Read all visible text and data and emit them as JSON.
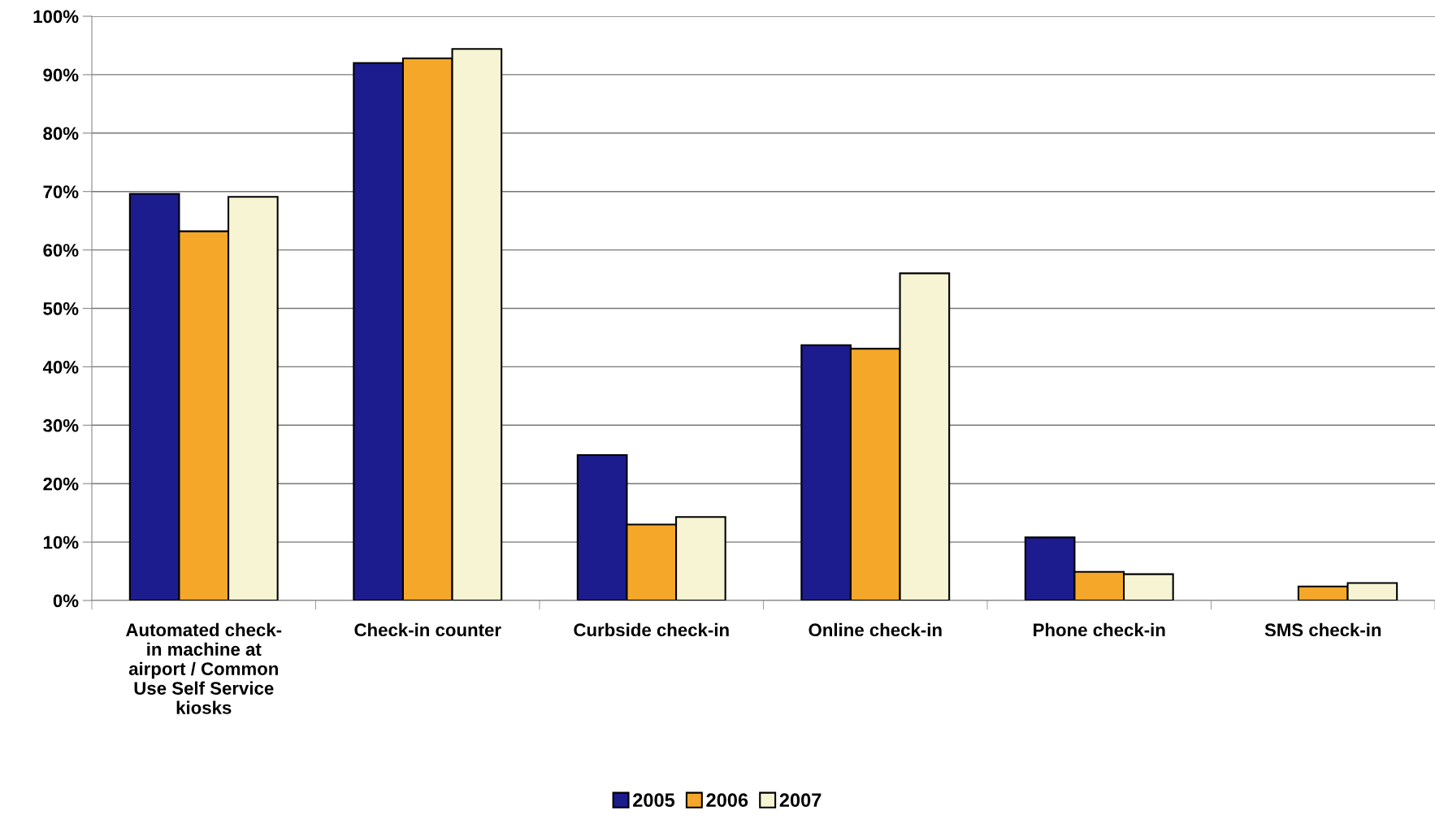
{
  "chart_data": {
    "type": "bar",
    "categories": [
      "Automated check-in machine at airport / Common Use Self Service kiosks",
      "Check-in counter",
      "Curbside check-in",
      "Online check-in",
      "Phone check-in",
      "SMS check-in"
    ],
    "series": [
      {
        "name": "2005",
        "color": "#1c1c8e",
        "values": [
          69.6,
          92.0,
          24.9,
          43.7,
          10.8,
          null
        ]
      },
      {
        "name": "2006",
        "color": "#f5a72a",
        "values": [
          63.2,
          92.8,
          13.0,
          43.1,
          4.9,
          2.4
        ]
      },
      {
        "name": "2007",
        "color": "#f6f4d2",
        "values": [
          69.1,
          94.4,
          14.3,
          56.0,
          4.5,
          3.0
        ]
      }
    ],
    "ylim": [
      0,
      100
    ],
    "yticks": [
      {
        "value": 0,
        "label": "0%"
      },
      {
        "value": 10,
        "label": "10%"
      },
      {
        "value": 20,
        "label": "20%"
      },
      {
        "value": 30,
        "label": "30%"
      },
      {
        "value": 40,
        "label": "40%"
      },
      {
        "value": 50,
        "label": "50%"
      },
      {
        "value": 60,
        "label": "60%"
      },
      {
        "value": 70,
        "label": "70%"
      },
      {
        "value": 80,
        "label": "80%"
      },
      {
        "value": 90,
        "label": "90%"
      },
      {
        "value": 100,
        "label": "100%"
      }
    ],
    "grid": "y",
    "legend": "bottom"
  }
}
